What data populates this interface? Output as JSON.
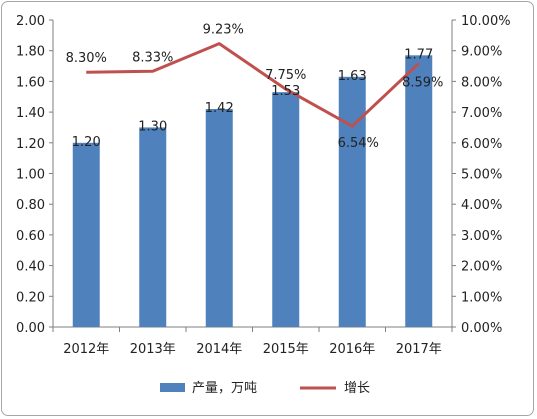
{
  "chart_data": {
    "type": "bar",
    "categories": [
      "2012年",
      "2013年",
      "2014年",
      "2015年",
      "2016年",
      "2017年"
    ],
    "series": [
      {
        "name": "产量，万吨",
        "type": "bar",
        "axis": "left",
        "values": [
          1.2,
          1.3,
          1.42,
          1.53,
          1.63,
          1.77
        ],
        "labels": [
          "1.20",
          "1.30",
          "1.42",
          "1.53",
          "1.63",
          "1.77"
        ],
        "color": "#4f81bd"
      },
      {
        "name": "增长",
        "type": "line",
        "axis": "right",
        "values": [
          8.3,
          8.33,
          9.23,
          7.75,
          6.54,
          8.59
        ],
        "labels": [
          "8.30%",
          "8.33%",
          "9.23%",
          "7.75%",
          "6.54%",
          "8.59%"
        ],
        "color": "#c0504d"
      }
    ],
    "y_left": {
      "range": [
        0,
        2.0
      ],
      "ticks": [
        "0.00",
        "0.20",
        "0.40",
        "0.60",
        "0.80",
        "1.00",
        "1.20",
        "1.40",
        "1.60",
        "1.80",
        "2.00"
      ]
    },
    "y_right": {
      "range": [
        0,
        10
      ],
      "ticks": [
        "0.00%",
        "1.00%",
        "2.00%",
        "3.00%",
        "4.00%",
        "5.00%",
        "6.00%",
        "7.00%",
        "8.00%",
        "9.00%",
        "10.00%"
      ]
    },
    "grid": false,
    "legend": "bottom"
  }
}
